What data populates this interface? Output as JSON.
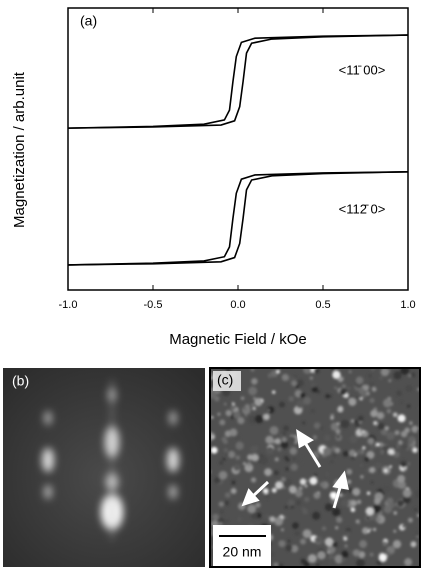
{
  "chart_data": {
    "type": "line",
    "x_label": "Magnetic Field / kOe",
    "y_label": "Magnetization / arb.unit",
    "annotations": [
      "(a)",
      "<11̄ 00>",
      "<112̄ 0>"
    ],
    "xlim": [
      -1,
      1
    ],
    "xticks": [
      {
        "value": -1,
        "label": "-1.0"
      },
      {
        "value": -0.5,
        "label": "-0.5"
      },
      {
        "value": 0,
        "label": "0.0"
      },
      {
        "value": 0.5,
        "label": "0.5"
      },
      {
        "value": 1,
        "label": "1.0"
      }
    ],
    "ylim": [
      0,
      1
    ],
    "series": [
      {
        "color": "#000000",
        "x": [
          -1,
          -0.5,
          -0.1,
          -0.02,
          0.01,
          0.03,
          0.05,
          0.08,
          0.2,
          0.5,
          1
        ],
        "values": [
          0.574,
          0.578,
          0.585,
          0.6,
          0.65,
          0.74,
          0.84,
          0.875,
          0.89,
          0.898,
          0.904
        ]
      },
      {
        "color": "#000000",
        "x": [
          1,
          0.5,
          0.1,
          0.02,
          -0.01,
          -0.03,
          -0.05,
          -0.08,
          -0.2,
          -0.5,
          -1
        ],
        "values": [
          0.904,
          0.9,
          0.893,
          0.878,
          0.828,
          0.738,
          0.638,
          0.603,
          0.588,
          0.58,
          0.574
        ]
      },
      {
        "color": "#000000",
        "x": [
          -1,
          -0.5,
          -0.1,
          -0.02,
          0.01,
          0.03,
          0.05,
          0.08,
          0.2,
          0.5,
          1
        ],
        "values": [
          0.089,
          0.093,
          0.1,
          0.115,
          0.165,
          0.255,
          0.355,
          0.39,
          0.405,
          0.413,
          0.419
        ]
      },
      {
        "color": "#000000",
        "x": [
          1,
          0.5,
          0.1,
          0.02,
          -0.01,
          -0.03,
          -0.05,
          -0.08,
          -0.2,
          -0.5,
          -1
        ],
        "values": [
          0.419,
          0.415,
          0.408,
          0.393,
          0.343,
          0.253,
          0.153,
          0.118,
          0.103,
          0.095,
          0.089
        ]
      }
    ]
  },
  "panels": [
    {
      "label": "(b)"
    },
    {
      "label": "(c)",
      "scale_bar": "20 nm"
    }
  ]
}
